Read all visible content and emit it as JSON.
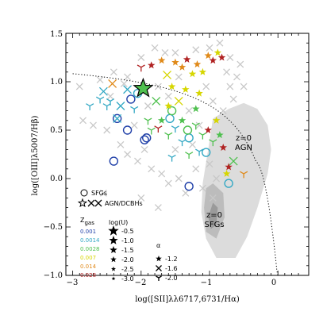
{
  "chart_data": {
    "type": "scatter",
    "title": "",
    "xlabel": "log([SII]λλ6717,6731/Hα)",
    "ylabel": "log([OIII]λ5007/Hβ)",
    "xlim": [
      -3.1,
      0.45
    ],
    "ylim": [
      -1.0,
      1.5
    ],
    "xticks": [
      "−3",
      "−2",
      "−1",
      "0"
    ],
    "yticks": [
      "−1.0",
      "−0.5",
      "0.0",
      "0.5",
      "1.0",
      "1.5"
    ],
    "grid": false,
    "background_regions": [
      {
        "name": "z=0 AGN",
        "label_lines": [
          "z=0",
          "AGN"
        ],
        "label_at": [
          -0.62,
          0.4
        ]
      },
      {
        "name": "z=0 SFGs",
        "label_lines": [
          "z=0",
          "SFGs"
        ],
        "label_at": [
          -0.98,
          -0.5
        ]
      }
    ],
    "demarcation_line": {
      "style": "dotted",
      "description": "Kewley curve",
      "from_x": -3.0,
      "to_x": 0.0
    },
    "legend": {
      "placement": "lower-left",
      "sfg_label": "SFGs",
      "agn_label": "AGN/DCBHs",
      "zgas_title": "Z",
      "zgas_sub": "gas",
      "zgas": [
        {
          "value": "0.001",
          "color": "#1f3fa8"
        },
        {
          "value": "0.0014",
          "color": "#33a8c4"
        },
        {
          "value": "0.0028",
          "color": "#4fc04f"
        },
        {
          "value": "0.007",
          "color": "#d6d600"
        },
        {
          "value": "0.014",
          "color": "#e08a1a"
        },
        {
          "value": "0.028",
          "color": "#b02222"
        }
      ],
      "logU_title": "log(U)",
      "logU": [
        "-0.5",
        "-1.0",
        "-1.5",
        "-2.0",
        "-2.5",
        "-3.0"
      ],
      "alpha_title": "α",
      "alpha": [
        {
          "value": "-1.2",
          "marker": "star"
        },
        {
          "value": "-1.6",
          "marker": "x"
        },
        {
          "value": "-2.0",
          "marker": "tri"
        }
      ]
    },
    "highlight": {
      "x": -1.97,
      "y": 0.93,
      "color": "#4fc04f",
      "marker": "big-star"
    },
    "series": [
      {
        "name": "SFGs",
        "marker": "circle",
        "points": [
          {
            "x": -2.4,
            "y": 0.18,
            "c": "#1f3fa8"
          },
          {
            "x": -2.35,
            "y": 0.62,
            "c": "#1f3fa8"
          },
          {
            "x": -2.2,
            "y": 0.5,
            "c": "#1f3fa8"
          },
          {
            "x": -2.15,
            "y": 0.82,
            "c": "#1f3fa8"
          },
          {
            "x": -1.92,
            "y": 0.42,
            "c": "#1f3fa8"
          },
          {
            "x": -1.95,
            "y": 0.4,
            "c": "#1f3fa8"
          },
          {
            "x": -1.3,
            "y": -0.08,
            "c": "#1f3fa8"
          },
          {
            "x": -2.05,
            "y": 0.88,
            "c": "#33a8c4"
          },
          {
            "x": -1.58,
            "y": 0.62,
            "c": "#33a8c4"
          },
          {
            "x": -1.3,
            "y": 0.42,
            "c": "#33a8c4"
          },
          {
            "x": -1.05,
            "y": 0.27,
            "c": "#33a8c4"
          },
          {
            "x": -0.72,
            "y": -0.05,
            "c": "#33a8c4"
          },
          {
            "x": -1.55,
            "y": 0.7,
            "c": "#4fc04f"
          },
          {
            "x": -1.32,
            "y": 0.5,
            "c": "#4fc04f"
          }
        ]
      },
      {
        "name": "AGN/DCBHs",
        "marker": "mixed",
        "points": [
          {
            "x": -2.75,
            "y": 0.75,
            "c": "#33a8c4",
            "m": "tri"
          },
          {
            "x": -2.6,
            "y": 0.82,
            "c": "#33a8c4",
            "m": "tri"
          },
          {
            "x": -2.55,
            "y": 0.9,
            "c": "#33a8c4",
            "m": "x"
          },
          {
            "x": -2.5,
            "y": 0.75,
            "c": "#33a8c4",
            "m": "tri"
          },
          {
            "x": -2.45,
            "y": 0.8,
            "c": "#33a8c4",
            "m": "tri"
          },
          {
            "x": -2.35,
            "y": 0.62,
            "c": "#33a8c4",
            "m": "x"
          },
          {
            "x": -2.2,
            "y": 0.92,
            "c": "#33a8c4",
            "m": "x"
          },
          {
            "x": -2.1,
            "y": 0.72,
            "c": "#33a8c4",
            "m": "tri"
          },
          {
            "x": -2.42,
            "y": 0.98,
            "c": "#e08a1a",
            "m": "x"
          },
          {
            "x": -2.0,
            "y": 1.15,
            "c": "#b02222",
            "m": "tri"
          },
          {
            "x": -1.95,
            "y": 0.92,
            "c": "#e08a1a",
            "m": "x"
          },
          {
            "x": -1.85,
            "y": 1.17,
            "c": "#b02222",
            "m": "star"
          },
          {
            "x": -1.78,
            "y": 0.8,
            "c": "#4fc04f",
            "m": "x"
          },
          {
            "x": -1.7,
            "y": 1.22,
            "c": "#e08a1a",
            "m": "star"
          },
          {
            "x": -1.62,
            "y": 1.07,
            "c": "#d6d600",
            "m": "x"
          },
          {
            "x": -1.55,
            "y": 0.95,
            "c": "#d6d600",
            "m": "star"
          },
          {
            "x": -1.5,
            "y": 1.2,
            "c": "#e08a1a",
            "m": "star"
          },
          {
            "x": -1.4,
            "y": 1.15,
            "c": "#e08a1a",
            "m": "star"
          },
          {
            "x": -1.33,
            "y": 1.23,
            "c": "#b02222",
            "m": "star"
          },
          {
            "x": -1.25,
            "y": 1.08,
            "c": "#d6d600",
            "m": "star"
          },
          {
            "x": -1.18,
            "y": 1.18,
            "c": "#e08a1a",
            "m": "star"
          },
          {
            "x": -1.1,
            "y": 1.1,
            "c": "#d6d600",
            "m": "star"
          },
          {
            "x": -1.02,
            "y": 1.27,
            "c": "#e08a1a",
            "m": "star"
          },
          {
            "x": -0.95,
            "y": 1.22,
            "c": "#b02222",
            "m": "star"
          },
          {
            "x": -0.88,
            "y": 1.3,
            "c": "#d6d600",
            "m": "star"
          },
          {
            "x": -0.82,
            "y": 1.25,
            "c": "#b02222",
            "m": "star"
          },
          {
            "x": -1.7,
            "y": 0.6,
            "c": "#4fc04f",
            "m": "star"
          },
          {
            "x": -1.6,
            "y": 0.75,
            "c": "#d6d600",
            "m": "star"
          },
          {
            "x": -1.45,
            "y": 0.8,
            "c": "#d6d600",
            "m": "x"
          },
          {
            "x": -1.4,
            "y": 0.6,
            "c": "#4fc04f",
            "m": "star"
          },
          {
            "x": -1.35,
            "y": 0.92,
            "c": "#d6d600",
            "m": "star"
          },
          {
            "x": -1.2,
            "y": 0.72,
            "c": "#4fc04f",
            "m": "star"
          },
          {
            "x": -1.15,
            "y": 0.88,
            "c": "#d6d600",
            "m": "star"
          },
          {
            "x": -1.85,
            "y": 0.5,
            "c": "#4fc04f",
            "m": "tri"
          },
          {
            "x": -1.9,
            "y": 0.6,
            "c": "#4fc04f",
            "m": "tri"
          },
          {
            "x": -1.75,
            "y": 0.52,
            "c": "#b02222",
            "m": "tri"
          },
          {
            "x": -1.6,
            "y": 0.45,
            "c": "#4fc04f",
            "m": "tri"
          },
          {
            "x": -1.5,
            "y": 0.52,
            "c": "#33a8c4",
            "m": "tri"
          },
          {
            "x": -1.4,
            "y": 0.38,
            "c": "#33a8c4",
            "m": "tri"
          },
          {
            "x": -1.2,
            "y": 0.55,
            "c": "#4fc04f",
            "m": "tri"
          },
          {
            "x": -1.1,
            "y": 0.45,
            "c": "#4fc04f",
            "m": "tri"
          },
          {
            "x": -0.95,
            "y": 0.38,
            "c": "#4fc04f",
            "m": "tri"
          },
          {
            "x": -1.55,
            "y": 0.22,
            "c": "#33a8c4",
            "m": "tri"
          },
          {
            "x": -1.3,
            "y": 0.25,
            "c": "#4fc04f",
            "m": "tri"
          },
          {
            "x": -1.15,
            "y": 0.28,
            "c": "#33a8c4",
            "m": "tri"
          },
          {
            "x": -2.3,
            "y": 0.75,
            "c": "#33a8c4",
            "m": "x"
          },
          {
            "x": -0.9,
            "y": 0.6,
            "c": "#d6d600",
            "m": "star"
          },
          {
            "x": -0.85,
            "y": 0.45,
            "c": "#4fc04f",
            "m": "star"
          },
          {
            "x": -0.8,
            "y": 0.32,
            "c": "#b02222",
            "m": "star"
          },
          {
            "x": -0.72,
            "y": 0.12,
            "c": "#b02222",
            "m": "star"
          },
          {
            "x": -0.75,
            "y": 0.05,
            "c": "#d6d600",
            "m": "star"
          },
          {
            "x": -0.65,
            "y": 0.18,
            "c": "#4fc04f",
            "m": "x"
          },
          {
            "x": -0.5,
            "y": 0.05,
            "c": "#e08a1a",
            "m": "tri"
          },
          {
            "x": -1.02,
            "y": 0.5,
            "c": "#b02222",
            "m": "star"
          }
        ]
      },
      {
        "name": "",
        "marker": "grey-background",
        "color": "#c8c8c8",
        "points": [
          {
            "x": -2.9,
            "y": 0.95
          },
          {
            "x": -2.6,
            "y": 1.02
          },
          {
            "x": -2.4,
            "y": 1.1
          },
          {
            "x": -2.2,
            "y": 1.05
          },
          {
            "x": -2.0,
            "y": 1.25
          },
          {
            "x": -1.8,
            "y": 1.35
          },
          {
            "x": -1.65,
            "y": 1.3
          },
          {
            "x": -1.5,
            "y": 1.3
          },
          {
            "x": -1.2,
            "y": 1.33
          },
          {
            "x": -1.0,
            "y": 1.35
          },
          {
            "x": -0.85,
            "y": 1.4
          },
          {
            "x": -0.7,
            "y": 1.25
          },
          {
            "x": -0.55,
            "y": 1.18
          },
          {
            "x": -0.6,
            "y": 1.05
          },
          {
            "x": -0.5,
            "y": 0.95
          },
          {
            "x": -0.7,
            "y": 0.95
          },
          {
            "x": -0.75,
            "y": 1.1
          },
          {
            "x": -2.85,
            "y": 0.6
          },
          {
            "x": -2.7,
            "y": 0.55
          },
          {
            "x": -2.5,
            "y": 0.5
          },
          {
            "x": -2.3,
            "y": 0.35
          },
          {
            "x": -2.2,
            "y": 0.25
          },
          {
            "x": -2.05,
            "y": 0.18
          },
          {
            "x": -1.85,
            "y": 0.1
          },
          {
            "x": -1.7,
            "y": 0.05
          },
          {
            "x": -1.6,
            "y": -0.05
          },
          {
            "x": -1.45,
            "y": 0.0
          },
          {
            "x": -1.35,
            "y": -0.15
          },
          {
            "x": -1.75,
            "y": -0.3
          },
          {
            "x": -2.55,
            "y": -0.15
          },
          {
            "x": -2.0,
            "y": -0.2
          },
          {
            "x": -1.2,
            "y": 0.1
          },
          {
            "x": -1.0,
            "y": 0.15
          },
          {
            "x": -0.9,
            "y": 0.0
          },
          {
            "x": -0.95,
            "y": -0.2
          },
          {
            "x": -1.1,
            "y": -0.1
          },
          {
            "x": -2.45,
            "y": 0.85
          },
          {
            "x": -2.25,
            "y": 0.98
          },
          {
            "x": -1.9,
            "y": 0.75
          },
          {
            "x": -1.75,
            "y": 0.95
          },
          {
            "x": -1.45,
            "y": 1.05
          },
          {
            "x": -1.3,
            "y": 0.7
          },
          {
            "x": -1.05,
            "y": 0.95
          },
          {
            "x": -0.95,
            "y": 0.8
          },
          {
            "x": -0.8,
            "y": 0.7
          },
          {
            "x": -0.65,
            "y": 0.82
          },
          {
            "x": -1.6,
            "y": 0.85
          },
          {
            "x": -1.15,
            "y": 0.55
          },
          {
            "x": -2.1,
            "y": 0.55
          },
          {
            "x": -1.95,
            "y": 0.3
          },
          {
            "x": -1.5,
            "y": 0.3
          },
          {
            "x": -1.25,
            "y": 0.35
          }
        ]
      }
    ]
  }
}
